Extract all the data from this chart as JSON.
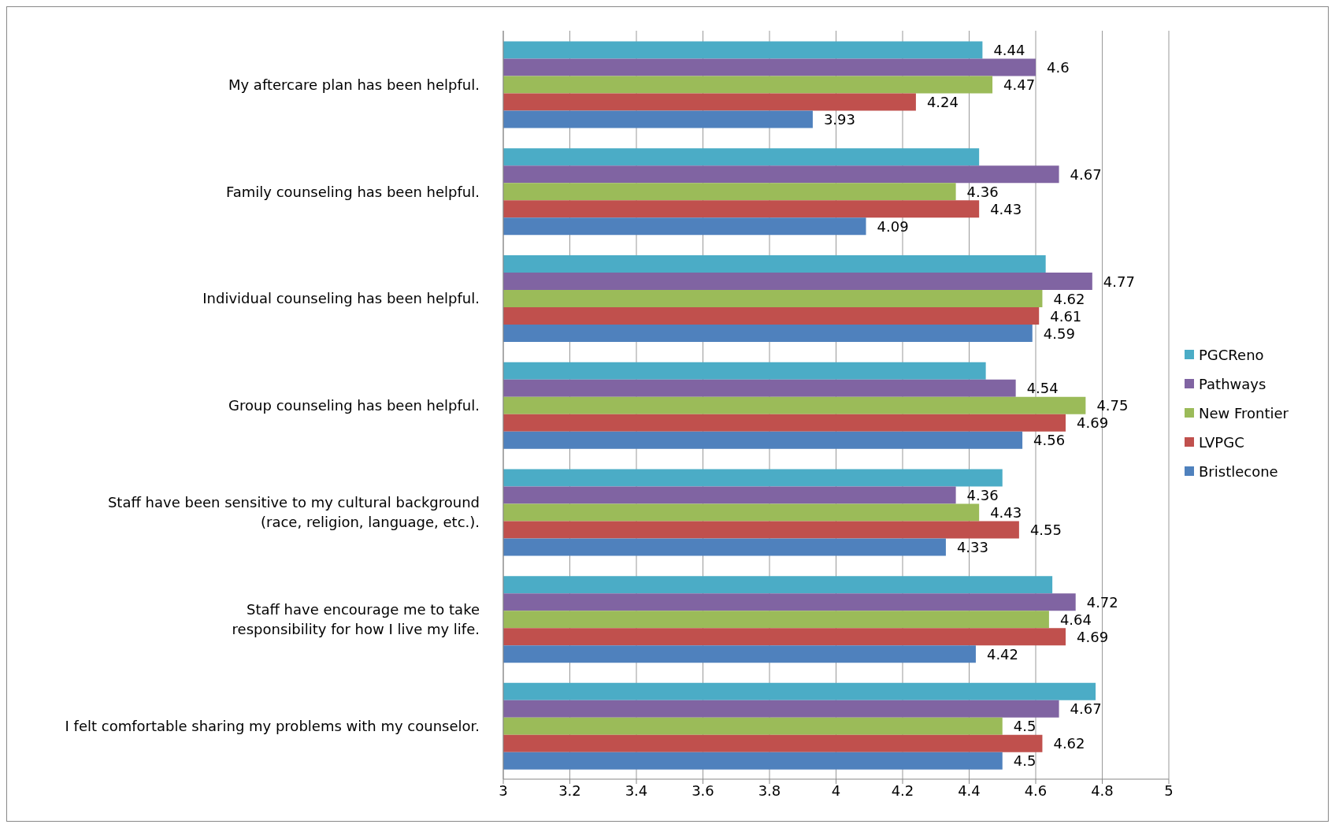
{
  "chart_data": {
    "type": "bar",
    "orientation": "horizontal",
    "categories": [
      "My aftercare plan has been helpful.",
      "Family counseling has been helpful.",
      "Individual counseling has been helpful.",
      "Group counseling has been helpful.",
      "Staff have been sensitive to my cultural background\n(race, religion, language, etc.).",
      "Staff have encourage me to take\nresponsibility for how I live my life.",
      "I felt comfortable sharing my problems with my counselor."
    ],
    "series": [
      {
        "name": "PGCReno",
        "color": "#4bacc6",
        "values": [
          4.44,
          4.43,
          4.63,
          4.45,
          4.5,
          4.65,
          4.78
        ],
        "value_labels": [
          "4.44",
          null,
          null,
          null,
          null,
          null,
          null
        ]
      },
      {
        "name": "Pathways",
        "color": "#8064a2",
        "values": [
          4.6,
          4.67,
          4.77,
          4.54,
          4.36,
          4.72,
          4.67
        ],
        "value_labels": [
          "4.6",
          "4.67",
          "4.77",
          "4.54",
          "4.36",
          "4.72",
          "4.67"
        ]
      },
      {
        "name": "New Frontier",
        "color": "#9bbb59",
        "values": [
          4.47,
          4.36,
          4.62,
          4.75,
          4.43,
          4.64,
          4.5
        ],
        "value_labels": [
          "4.47",
          "4.36",
          "4.62",
          "4.75",
          "4.43",
          "4.64",
          "4.5"
        ]
      },
      {
        "name": "LVPGC",
        "color": "#c0504d",
        "values": [
          4.24,
          4.43,
          4.61,
          4.69,
          4.55,
          4.69,
          4.62
        ],
        "value_labels": [
          "4.24",
          "4.43",
          "4.61",
          "4.69",
          "4.55",
          "4.69",
          "4.62"
        ]
      },
      {
        "name": "Bristlecone",
        "color": "#4f81bd",
        "values": [
          3.93,
          4.09,
          4.59,
          4.56,
          4.33,
          4.42,
          4.5
        ],
        "value_labels": [
          "3.93",
          "4.09",
          "4.59",
          "4.56",
          "4.33",
          "4.42",
          "4.5"
        ]
      }
    ],
    "xlim": [
      3,
      5
    ],
    "xticks": [
      3,
      3.2,
      3.4,
      3.6,
      3.8,
      4,
      4.2,
      4.4,
      4.6,
      4.8,
      5
    ],
    "grid": "x",
    "legend": "right"
  }
}
